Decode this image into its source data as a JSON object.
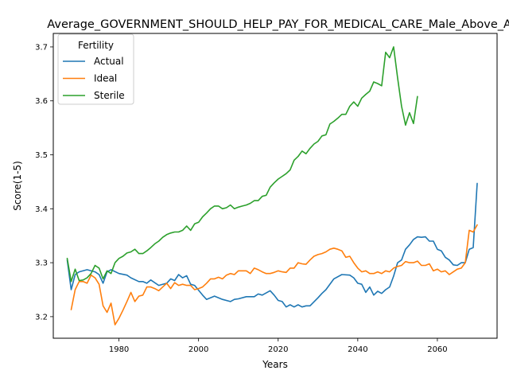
{
  "chart_data": {
    "type": "line",
    "title": "Average_GOVERNMENT_SHOULD_HELP_PAY_FOR_MEDICAL_CARE_Male_Above_Av",
    "xlabel": "Years",
    "ylabel": "Score(1-5)",
    "xlim": [
      1963.5,
      2075
    ],
    "ylim": [
      3.16,
      3.725
    ],
    "xticks": [
      1980,
      2000,
      2020,
      2040,
      2060
    ],
    "yticks": [
      3.2,
      3.3,
      3.4,
      3.5,
      3.6,
      3.7
    ],
    "xtick_labels": [
      "1980",
      "2000",
      "2020",
      "2040",
      "2060"
    ],
    "ytick_labels": [
      "3.2",
      "3.3",
      "3.4",
      "3.5",
      "3.6",
      "3.7"
    ],
    "grid": false,
    "legend": {
      "title": "Fertility",
      "placement": "top-left"
    },
    "series": [
      {
        "name": "Actual",
        "color": "#1f77b4",
        "x": [
          1967,
          1968,
          1969,
          1970,
          1972,
          1974,
          1975,
          1976,
          1977,
          1978,
          1980,
          1982,
          1983,
          1985,
          1986,
          1987,
          1988,
          1990,
          1992,
          1993,
          1994,
          1995,
          1996,
          1997,
          1998,
          1999,
          2001,
          2002,
          2004,
          2006,
          2008,
          2009,
          2010,
          2012,
          2014,
          2015,
          2016,
          2018,
          2019,
          2020,
          2021,
          2022,
          2023,
          2024,
          2025,
          2026,
          2027,
          2028,
          2030,
          2031,
          2032,
          2034,
          2036,
          2038,
          2039,
          2040,
          2041,
          2042,
          2043,
          2044,
          2045,
          2046,
          2047,
          2048,
          2049,
          2050,
          2051,
          2052,
          2053,
          2054,
          2055,
          2056,
          2057,
          2058,
          2059,
          2060,
          2061,
          2062,
          2063,
          2064,
          2065,
          2066,
          2067,
          2068,
          2069,
          2070
        ],
        "y": [
          3.305,
          3.25,
          3.278,
          3.283,
          3.287,
          3.283,
          3.278,
          3.262,
          3.283,
          3.287,
          3.28,
          3.277,
          3.272,
          3.265,
          3.265,
          3.262,
          3.268,
          3.258,
          3.262,
          3.27,
          3.267,
          3.278,
          3.272,
          3.276,
          3.26,
          3.258,
          3.24,
          3.232,
          3.238,
          3.232,
          3.228,
          3.232,
          3.233,
          3.237,
          3.237,
          3.242,
          3.24,
          3.248,
          3.24,
          3.23,
          3.228,
          3.218,
          3.222,
          3.218,
          3.222,
          3.218,
          3.22,
          3.22,
          3.235,
          3.243,
          3.25,
          3.27,
          3.278,
          3.277,
          3.272,
          3.262,
          3.26,
          3.245,
          3.255,
          3.24,
          3.247,
          3.243,
          3.25,
          3.255,
          3.275,
          3.3,
          3.305,
          3.325,
          3.333,
          3.343,
          3.348,
          3.347,
          3.348,
          3.34,
          3.34,
          3.325,
          3.322,
          3.31,
          3.305,
          3.296,
          3.295,
          3.3,
          3.3,
          3.325,
          3.328,
          3.447
        ]
      },
      {
        "name": "Ideal",
        "color": "#ff7f0e",
        "x": [
          1968,
          1969,
          1970,
          1971,
          1972,
          1973,
          1974,
          1975,
          1976,
          1977,
          1978,
          1979,
          1980,
          1981,
          1982,
          1983,
          1984,
          1985,
          1986,
          1987,
          1988,
          1989,
          1990,
          1991,
          1992,
          1993,
          1994,
          1995,
          1996,
          1997,
          1998,
          1999,
          2000,
          2001,
          2002,
          2003,
          2004,
          2005,
          2006,
          2007,
          2008,
          2009,
          2010,
          2011,
          2012,
          2013,
          2014,
          2015,
          2016,
          2017,
          2018,
          2019,
          2020,
          2021,
          2022,
          2023,
          2024,
          2025,
          2026,
          2027,
          2028,
          2029,
          2030,
          2031,
          2032,
          2033,
          2034,
          2035,
          2036,
          2037,
          2038,
          2039,
          2040,
          2041,
          2042,
          2043,
          2044,
          2045,
          2046,
          2047,
          2048,
          2049,
          2050,
          2051,
          2052,
          2053,
          2054,
          2055,
          2056,
          2057,
          2058,
          2059,
          2060,
          2061,
          2062,
          2063,
          2064,
          2065,
          2066,
          2067,
          2068,
          2069,
          2070
        ],
        "y": [
          3.213,
          3.25,
          3.265,
          3.265,
          3.262,
          3.277,
          3.272,
          3.26,
          3.22,
          3.208,
          3.225,
          3.185,
          3.197,
          3.212,
          3.228,
          3.245,
          3.228,
          3.238,
          3.24,
          3.255,
          3.255,
          3.252,
          3.248,
          3.255,
          3.262,
          3.252,
          3.263,
          3.258,
          3.26,
          3.258,
          3.258,
          3.25,
          3.252,
          3.255,
          3.262,
          3.27,
          3.27,
          3.273,
          3.27,
          3.277,
          3.28,
          3.278,
          3.285,
          3.285,
          3.285,
          3.28,
          3.29,
          3.287,
          3.283,
          3.28,
          3.28,
          3.282,
          3.285,
          3.283,
          3.282,
          3.29,
          3.29,
          3.3,
          3.298,
          3.297,
          3.305,
          3.312,
          3.315,
          3.317,
          3.32,
          3.325,
          3.327,
          3.325,
          3.322,
          3.31,
          3.312,
          3.3,
          3.29,
          3.283,
          3.285,
          3.28,
          3.28,
          3.283,
          3.28,
          3.285,
          3.283,
          3.29,
          3.293,
          3.295,
          3.302,
          3.3,
          3.3,
          3.303,
          3.295,
          3.295,
          3.298,
          3.285,
          3.288,
          3.283,
          3.285,
          3.278,
          3.283,
          3.288,
          3.29,
          3.3,
          3.36,
          3.357,
          3.37
        ]
      },
      {
        "name": "Sterile",
        "color": "#2ca02c",
        "x": [
          1967,
          1968,
          1969,
          1970,
          1971,
          1972,
          1973,
          1974,
          1975,
          1976,
          1977,
          1978,
          1979,
          1980,
          1981,
          1982,
          1983,
          1984,
          1985,
          1986,
          1987,
          1988,
          1989,
          1990,
          1991,
          1992,
          1993,
          1994,
          1995,
          1996,
          1997,
          1998,
          1999,
          2000,
          2001,
          2002,
          2003,
          2004,
          2005,
          2006,
          2007,
          2008,
          2009,
          2010,
          2011,
          2012,
          2013,
          2014,
          2015,
          2016,
          2017,
          2018,
          2019,
          2020,
          2021,
          2022,
          2023,
          2024,
          2025,
          2026,
          2027,
          2028,
          2029,
          2030,
          2031,
          2032,
          2033,
          2034,
          2035,
          2036,
          2037,
          2038,
          2039,
          2040,
          2041,
          2042,
          2043,
          2044,
          2045,
          2046,
          2047,
          2048,
          2049,
          2050,
          2051,
          2052,
          2053,
          2054,
          2055
        ],
        "y": [
          3.308,
          3.265,
          3.288,
          3.267,
          3.268,
          3.272,
          3.28,
          3.295,
          3.29,
          3.27,
          3.285,
          3.28,
          3.3,
          3.308,
          3.312,
          3.318,
          3.32,
          3.325,
          3.317,
          3.317,
          3.322,
          3.328,
          3.335,
          3.34,
          3.347,
          3.352,
          3.355,
          3.357,
          3.357,
          3.36,
          3.368,
          3.36,
          3.372,
          3.375,
          3.385,
          3.392,
          3.4,
          3.405,
          3.405,
          3.4,
          3.402,
          3.407,
          3.4,
          3.403,
          3.405,
          3.407,
          3.41,
          3.415,
          3.415,
          3.423,
          3.425,
          3.44,
          3.448,
          3.455,
          3.46,
          3.465,
          3.472,
          3.49,
          3.497,
          3.507,
          3.502,
          3.512,
          3.52,
          3.525,
          3.535,
          3.537,
          3.557,
          3.562,
          3.568,
          3.575,
          3.575,
          3.59,
          3.598,
          3.59,
          3.605,
          3.612,
          3.618,
          3.635,
          3.632,
          3.628,
          3.69,
          3.68,
          3.7,
          3.643,
          3.59,
          3.555,
          3.578,
          3.558,
          3.608
        ]
      }
    ]
  }
}
